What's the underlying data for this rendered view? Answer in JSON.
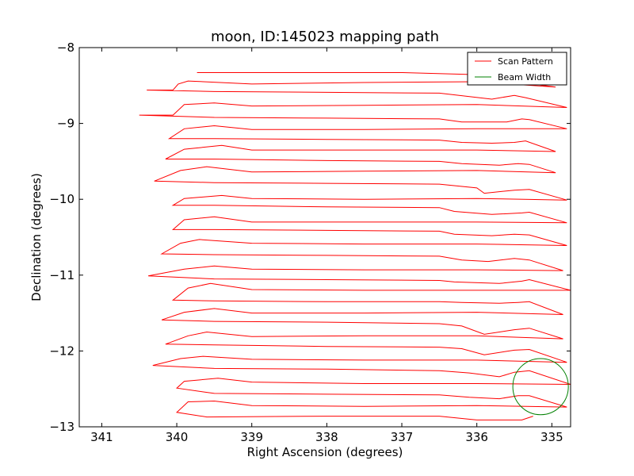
{
  "chart_data": {
    "type": "line",
    "title": "moon, ID:145023 mapping path",
    "xlabel": "Right Ascension (degrees)",
    "ylabel": "Declination (degrees)",
    "xlim": [
      341.3,
      334.75
    ],
    "ylim": [
      -13,
      -8
    ],
    "x_inverted": true,
    "xticks": [
      341,
      340,
      339,
      338,
      337,
      336,
      335
    ],
    "xtick_labels": [
      "341",
      "340",
      "339",
      "338",
      "337",
      "336",
      "335"
    ],
    "yticks": [
      -8,
      -9,
      -10,
      -11,
      -12,
      -13
    ],
    "ytick_labels": [
      "−8",
      "−9",
      "−10",
      "−11",
      "−12",
      "−13"
    ],
    "legend": {
      "position": "top-right",
      "entries": [
        {
          "label": "Scan Pattern",
          "color": "#ff0000"
        },
        {
          "label": "Beam Width",
          "color": "#008000"
        }
      ]
    },
    "series": [
      {
        "name": "Scan Pattern",
        "color": "#ff0000",
        "points": [
          [
            339.73,
            -8.33
          ],
          [
            337.0,
            -8.33
          ],
          [
            335.9,
            -8.36
          ],
          [
            335.7,
            -8.42
          ],
          [
            334.95,
            -8.52
          ],
          [
            336.0,
            -8.45
          ],
          [
            337.5,
            -8.46
          ],
          [
            339.0,
            -8.48
          ],
          [
            339.85,
            -8.44
          ],
          [
            339.98,
            -8.48
          ],
          [
            340.05,
            -8.56
          ],
          [
            340.4,
            -8.56
          ],
          [
            339.5,
            -8.58
          ],
          [
            338.0,
            -8.59
          ],
          [
            336.5,
            -8.6
          ],
          [
            335.8,
            -8.68
          ],
          [
            335.5,
            -8.63
          ],
          [
            335.35,
            -8.66
          ],
          [
            334.8,
            -8.79
          ],
          [
            336.0,
            -8.75
          ],
          [
            337.5,
            -8.76
          ],
          [
            339.0,
            -8.77
          ],
          [
            339.5,
            -8.73
          ],
          [
            339.9,
            -8.75
          ],
          [
            340.05,
            -8.89
          ],
          [
            340.5,
            -8.89
          ],
          [
            339.5,
            -8.92
          ],
          [
            338.0,
            -8.93
          ],
          [
            336.5,
            -8.94
          ],
          [
            336.2,
            -8.98
          ],
          [
            335.6,
            -8.98
          ],
          [
            335.4,
            -8.94
          ],
          [
            335.3,
            -8.95
          ],
          [
            334.8,
            -9.07
          ],
          [
            336.0,
            -9.07
          ],
          [
            337.5,
            -9.08
          ],
          [
            339.0,
            -9.08
          ],
          [
            339.5,
            -9.03
          ],
          [
            339.9,
            -9.07
          ],
          [
            340.1,
            -9.2
          ],
          [
            339.5,
            -9.2
          ],
          [
            338.0,
            -9.21
          ],
          [
            336.5,
            -9.22
          ],
          [
            336.2,
            -9.25
          ],
          [
            335.8,
            -9.26
          ],
          [
            335.5,
            -9.25
          ],
          [
            335.35,
            -9.23
          ],
          [
            334.95,
            -9.37
          ],
          [
            336.0,
            -9.35
          ],
          [
            337.5,
            -9.35
          ],
          [
            339.0,
            -9.35
          ],
          [
            339.4,
            -9.29
          ],
          [
            339.9,
            -9.34
          ],
          [
            340.15,
            -9.47
          ],
          [
            339.5,
            -9.47
          ],
          [
            338.0,
            -9.49
          ],
          [
            336.5,
            -9.5
          ],
          [
            336.2,
            -9.53
          ],
          [
            335.7,
            -9.55
          ],
          [
            335.45,
            -9.53
          ],
          [
            335.3,
            -9.54
          ],
          [
            334.95,
            -9.65
          ],
          [
            336.0,
            -9.62
          ],
          [
            337.5,
            -9.63
          ],
          [
            339.0,
            -9.64
          ],
          [
            339.6,
            -9.57
          ],
          [
            339.95,
            -9.62
          ],
          [
            340.3,
            -9.76
          ],
          [
            339.5,
            -9.78
          ],
          [
            338.0,
            -9.79
          ],
          [
            336.5,
            -9.8
          ],
          [
            336.0,
            -9.85
          ],
          [
            335.9,
            -9.92
          ],
          [
            335.5,
            -9.88
          ],
          [
            335.3,
            -9.87
          ],
          [
            334.8,
            -10.01
          ],
          [
            336.0,
            -9.99
          ],
          [
            337.5,
            -10.0
          ],
          [
            339.0,
            -9.99
          ],
          [
            339.4,
            -9.95
          ],
          [
            339.9,
            -9.99
          ],
          [
            340.05,
            -10.08
          ],
          [
            339.5,
            -10.08
          ],
          [
            338.0,
            -10.1
          ],
          [
            336.5,
            -10.11
          ],
          [
            336.3,
            -10.16
          ],
          [
            335.8,
            -10.2
          ],
          [
            335.4,
            -10.18
          ],
          [
            335.3,
            -10.17
          ],
          [
            334.8,
            -10.31
          ],
          [
            336.0,
            -10.3
          ],
          [
            337.5,
            -10.3
          ],
          [
            339.0,
            -10.3
          ],
          [
            339.5,
            -10.23
          ],
          [
            339.9,
            -10.27
          ],
          [
            340.05,
            -10.4
          ],
          [
            339.5,
            -10.4
          ],
          [
            338.0,
            -10.41
          ],
          [
            336.5,
            -10.42
          ],
          [
            336.3,
            -10.46
          ],
          [
            335.8,
            -10.48
          ],
          [
            335.5,
            -10.46
          ],
          [
            335.3,
            -10.47
          ],
          [
            334.8,
            -10.61
          ],
          [
            336.0,
            -10.59
          ],
          [
            337.5,
            -10.59
          ],
          [
            339.0,
            -10.58
          ],
          [
            339.7,
            -10.53
          ],
          [
            339.95,
            -10.58
          ],
          [
            340.2,
            -10.72
          ],
          [
            339.5,
            -10.73
          ],
          [
            338.0,
            -10.74
          ],
          [
            336.5,
            -10.75
          ],
          [
            336.2,
            -10.8
          ],
          [
            335.85,
            -10.82
          ],
          [
            335.5,
            -10.78
          ],
          [
            335.3,
            -10.8
          ],
          [
            334.85,
            -10.94
          ],
          [
            336.0,
            -10.93
          ],
          [
            337.5,
            -10.93
          ],
          [
            339.0,
            -10.92
          ],
          [
            339.5,
            -10.88
          ],
          [
            339.9,
            -10.92
          ],
          [
            340.38,
            -11.01
          ],
          [
            339.5,
            -11.05
          ],
          [
            338.0,
            -11.06
          ],
          [
            336.5,
            -11.07
          ],
          [
            336.3,
            -11.09
          ],
          [
            335.7,
            -11.11
          ],
          [
            335.4,
            -11.08
          ],
          [
            335.3,
            -11.06
          ],
          [
            334.75,
            -11.2
          ],
          [
            336.0,
            -11.2
          ],
          [
            337.5,
            -11.2
          ],
          [
            339.0,
            -11.19
          ],
          [
            339.55,
            -11.11
          ],
          [
            339.85,
            -11.17
          ],
          [
            340.05,
            -11.33
          ],
          [
            339.5,
            -11.34
          ],
          [
            338.0,
            -11.35
          ],
          [
            336.5,
            -11.35
          ],
          [
            336.2,
            -11.36
          ],
          [
            335.7,
            -11.37
          ],
          [
            335.45,
            -11.36
          ],
          [
            335.3,
            -11.35
          ],
          [
            334.85,
            -11.52
          ],
          [
            336.0,
            -11.49
          ],
          [
            337.5,
            -11.5
          ],
          [
            339.0,
            -11.5
          ],
          [
            339.5,
            -11.44
          ],
          [
            339.9,
            -11.49
          ],
          [
            340.2,
            -11.59
          ],
          [
            339.5,
            -11.61
          ],
          [
            338.0,
            -11.62
          ],
          [
            336.5,
            -11.64
          ],
          [
            336.2,
            -11.67
          ],
          [
            335.9,
            -11.78
          ],
          [
            335.5,
            -11.72
          ],
          [
            335.3,
            -11.7
          ],
          [
            334.85,
            -11.84
          ],
          [
            336.0,
            -11.8
          ],
          [
            337.5,
            -11.8
          ],
          [
            339.0,
            -11.81
          ],
          [
            339.6,
            -11.75
          ],
          [
            339.85,
            -11.8
          ],
          [
            340.15,
            -11.91
          ],
          [
            339.5,
            -11.92
          ],
          [
            338.0,
            -11.94
          ],
          [
            336.5,
            -11.95
          ],
          [
            336.2,
            -11.97
          ],
          [
            335.9,
            -12.05
          ],
          [
            335.5,
            -11.99
          ],
          [
            335.3,
            -11.98
          ],
          [
            334.8,
            -12.15
          ],
          [
            336.0,
            -12.12
          ],
          [
            337.5,
            -12.12
          ],
          [
            339.0,
            -12.11
          ],
          [
            339.65,
            -12.07
          ],
          [
            339.95,
            -12.1
          ],
          [
            340.32,
            -12.19
          ],
          [
            339.5,
            -12.23
          ],
          [
            338.0,
            -12.24
          ],
          [
            336.5,
            -12.26
          ],
          [
            336.1,
            -12.29
          ],
          [
            335.7,
            -12.34
          ],
          [
            335.5,
            -12.28
          ],
          [
            335.3,
            -12.26
          ],
          [
            334.75,
            -12.44
          ],
          [
            336.0,
            -12.43
          ],
          [
            337.5,
            -12.43
          ],
          [
            339.0,
            -12.41
          ],
          [
            339.45,
            -12.36
          ],
          [
            339.9,
            -12.4
          ],
          [
            340.0,
            -12.49
          ],
          [
            339.5,
            -12.56
          ],
          [
            338.0,
            -12.57
          ],
          [
            336.5,
            -12.58
          ],
          [
            336.1,
            -12.61
          ],
          [
            335.7,
            -12.63
          ],
          [
            335.45,
            -12.59
          ],
          [
            335.3,
            -12.59
          ],
          [
            334.8,
            -12.74
          ],
          [
            336.0,
            -12.72
          ],
          [
            337.5,
            -12.73
          ],
          [
            339.0,
            -12.72
          ],
          [
            339.5,
            -12.66
          ],
          [
            339.85,
            -12.67
          ],
          [
            340.0,
            -12.81
          ],
          [
            339.6,
            -12.87
          ],
          [
            338.0,
            -12.86
          ],
          [
            336.5,
            -12.86
          ],
          [
            336.0,
            -12.91
          ],
          [
            335.4,
            -12.91
          ],
          [
            335.25,
            -12.86
          ]
        ]
      },
      {
        "name": "Beam Width",
        "color": "#008000",
        "circle": {
          "center": [
            335.15,
            -12.47
          ],
          "radius_deg": 0.37
        }
      }
    ]
  }
}
